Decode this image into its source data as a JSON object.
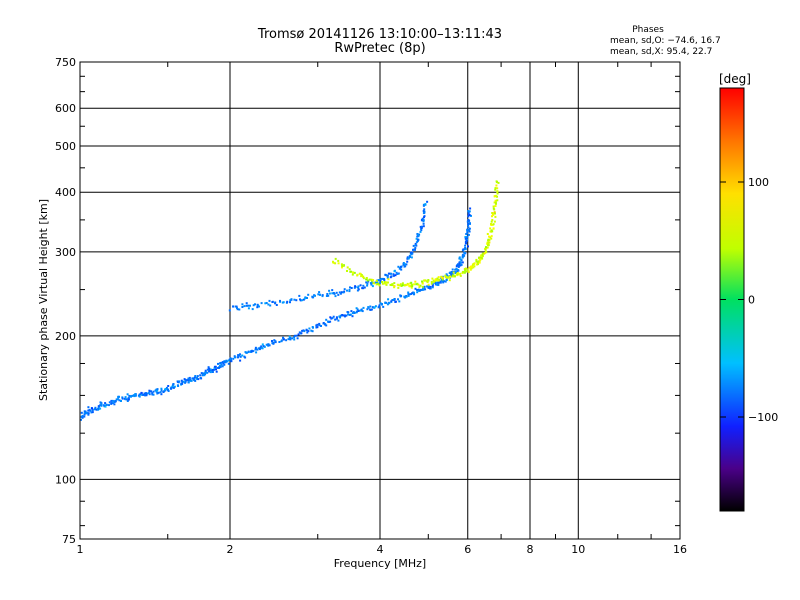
{
  "chart_data": {
    "type": "scatter",
    "title": "Tromsø 20141126 13:10:00–13:11:43",
    "subtitle": "RwPretec (8p)",
    "stats": {
      "heading": "Phases",
      "line1": "mean, sd,O: −74.6, 16.7",
      "line2": "mean, sd,X:  95.4, 22.7"
    },
    "xlabel": "Frequency [MHz]",
    "ylabel": "Stationary phase Virtual Height [km]",
    "x_scale": "log",
    "y_scale": "log",
    "xlim": [
      1,
      16
    ],
    "ylim": [
      75,
      750
    ],
    "x_ticks": [
      1,
      2,
      4,
      6,
      8,
      10,
      16
    ],
    "x_tick_labels": [
      "1",
      "2",
      "4",
      "6",
      "8",
      "10",
      "16"
    ],
    "y_ticks": [
      75,
      100,
      200,
      300,
      400,
      500,
      600,
      750
    ],
    "y_tick_labels": [
      "75",
      "100",
      "200",
      "300",
      "400",
      "500",
      "600",
      "750"
    ],
    "grid": true,
    "colorbar": {
      "label": "[deg]",
      "range": [
        -180,
        180
      ],
      "ticks": [
        100,
        0,
        -100
      ],
      "tick_labels": [
        "100",
        "0",
        "−100"
      ],
      "colormap": "rainbow: black (−180) → violet → blue → cyan → green → yellow → orange → red (+180)"
    },
    "series": [
      {
        "mode": "O",
        "phase_mean": -74.6,
        "phase_sd": 16.7,
        "points": [
          [
            1.0,
            135
          ],
          [
            1.05,
            140
          ],
          [
            1.12,
            143
          ],
          [
            1.2,
            147
          ],
          [
            1.3,
            150
          ],
          [
            1.4,
            152
          ],
          [
            1.5,
            155
          ],
          [
            1.6,
            160
          ],
          [
            1.7,
            163
          ],
          [
            1.8,
            168
          ],
          [
            1.9,
            172
          ],
          [
            2.0,
            178
          ],
          [
            2.2,
            185
          ],
          [
            2.4,
            192
          ],
          [
            2.7,
            200
          ],
          [
            3.0,
            210
          ],
          [
            3.3,
            218
          ],
          [
            3.6,
            225
          ],
          [
            4.0,
            232
          ],
          [
            4.4,
            240
          ],
          [
            4.8,
            248
          ],
          [
            5.1,
            255
          ],
          [
            5.4,
            262
          ],
          [
            5.6,
            270
          ],
          [
            5.8,
            282
          ],
          [
            5.9,
            300
          ],
          [
            6.0,
            330
          ],
          [
            6.05,
            370
          ]
        ]
      },
      {
        "mode": "O",
        "phase_mean": -74.6,
        "phase_sd": 16.7,
        "points": [
          [
            2.0,
            228
          ],
          [
            2.3,
            232
          ],
          [
            2.7,
            238
          ],
          [
            3.1,
            244
          ],
          [
            3.5,
            250
          ],
          [
            3.9,
            258
          ],
          [
            4.2,
            268
          ],
          [
            4.5,
            282
          ],
          [
            4.7,
            305
          ],
          [
            4.85,
            340
          ],
          [
            4.95,
            380
          ]
        ]
      },
      {
        "mode": "X",
        "phase_mean": 95.4,
        "phase_sd": 22.7,
        "points": [
          [
            3.2,
            288
          ],
          [
            3.6,
            268
          ],
          [
            4.0,
            258
          ],
          [
            4.4,
            254
          ],
          [
            4.8,
            256
          ],
          [
            5.2,
            262
          ],
          [
            5.6,
            268
          ],
          [
            6.0,
            274
          ],
          [
            6.3,
            285
          ],
          [
            6.5,
            300
          ],
          [
            6.7,
            330
          ],
          [
            6.8,
            370
          ],
          [
            6.9,
            420
          ]
        ]
      }
    ]
  }
}
